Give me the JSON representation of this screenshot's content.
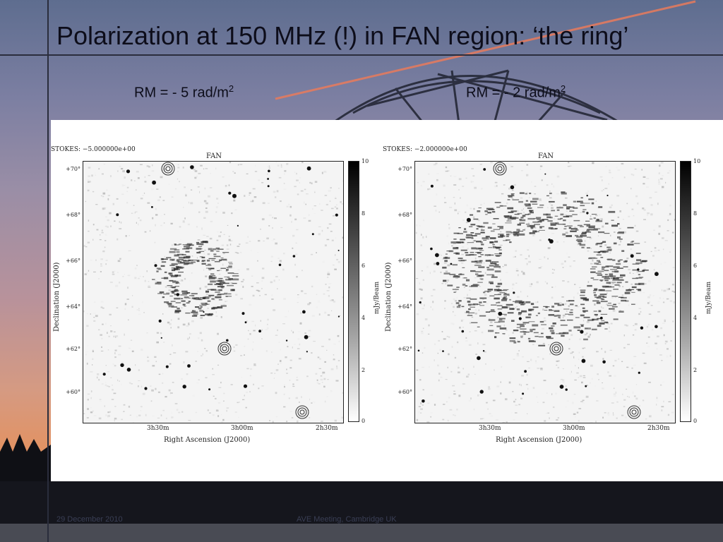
{
  "slide": {
    "title": "Polarization at 150 MHz (!)  in FAN region:    ‘the ring’",
    "rm_left": {
      "prefix": "RM = - 5 rad/m",
      "exp": "2"
    },
    "rm_right": {
      "prefix": "RM = - 2 rad/m",
      "exp": "2"
    }
  },
  "figures": [
    {
      "stokes": "STOKES:  −5.000000e+00",
      "field": "FAN",
      "dec_ticks": [
        "+70°",
        "+68°",
        "+66°",
        "+64°",
        "+62°",
        "+60°"
      ],
      "ra_ticks": [
        "3h30m",
        "3h00m",
        "2h30m"
      ],
      "xlabel": "Right Ascension (J2000)",
      "ylabel": "Declination (J2000)",
      "cbar_ticks": [
        "10",
        "8",
        "6",
        "4",
        "2",
        "0"
      ],
      "cbar_unit": "mJy/Beam",
      "pattern": "compact-ring"
    },
    {
      "stokes": "STOKES:  −2.000000e+00",
      "field": "FAN",
      "dec_ticks": [
        "+70°",
        "+68°",
        "+66°",
        "+64°",
        "+62°",
        "+60°"
      ],
      "ra_ticks": [
        "3h30m",
        "3h00m",
        "2h30m"
      ],
      "xlabel": "Right Ascension (J2000)",
      "ylabel": "Declination (J2000)",
      "cbar_ticks": [
        "10",
        "8",
        "6",
        "4",
        "2",
        "0"
      ],
      "cbar_unit": "mJy/Beam",
      "pattern": "wide-ring"
    }
  ],
  "footer": {
    "left": "29 December 2010",
    "middle": "AVE Meeting, Cambridge UK"
  }
}
